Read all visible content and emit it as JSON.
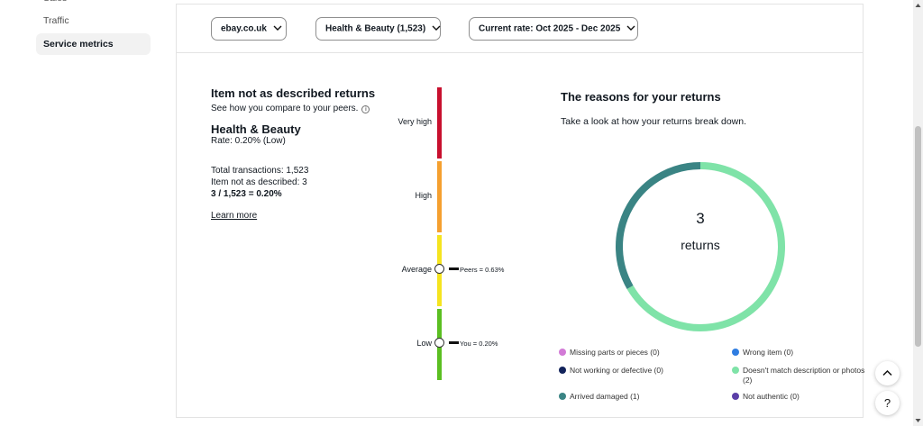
{
  "sidebar": {
    "cut_item": "Sales",
    "items": [
      {
        "label": "Traffic"
      },
      {
        "label": "Service metrics",
        "active": true
      }
    ]
  },
  "filters": {
    "site": "ebay.co.uk",
    "category": "Health & Beauty (1,523)",
    "period": "Current rate: Oct 2025 - Dec 2025"
  },
  "metric": {
    "title": "Item not as described returns",
    "subtitle": "See how you compare to your peers.",
    "category": "Health & Beauty",
    "rate": "Rate: 0.20% (Low)",
    "total_transactions": "Total transactions: 1,523",
    "inad_count": "Item not as described: 3",
    "formula": "3 / 1,523 = 0.20%",
    "learn_more": "Learn more"
  },
  "scale": {
    "levels": [
      {
        "label": "Very high",
        "color": "#c8102e"
      },
      {
        "label": "High",
        "color": "#f5a02f"
      },
      {
        "label": "Average",
        "color": "#f5e41f"
      },
      {
        "label": "Low",
        "color": "#5bbf21"
      }
    ],
    "peers_label": "Peers = 0.63%",
    "you_label": "You = 0.20%"
  },
  "reasons": {
    "title": "The reasons for your returns",
    "subtitle": "Take a look at how your returns break down.",
    "total": "3",
    "total_label": "returns",
    "legend": [
      {
        "label": "Missing parts or pieces (0)",
        "color": "#d27ad6",
        "count": 0
      },
      {
        "label": "Wrong item (0)",
        "color": "#2f7de1",
        "count": 0
      },
      {
        "label": "Not working or defective (0)",
        "color": "#12235b",
        "count": 0
      },
      {
        "label": "Doesn't match description or photos",
        "label2": "(2)",
        "color": "#7fe3a8",
        "count": 2
      },
      {
        "label": "Arrived damaged (1)",
        "color": "#3a8484",
        "count": 1
      },
      {
        "label": "Not authentic (0)",
        "color": "#5b3fa8",
        "count": 0
      }
    ]
  },
  "help_label": "?"
}
